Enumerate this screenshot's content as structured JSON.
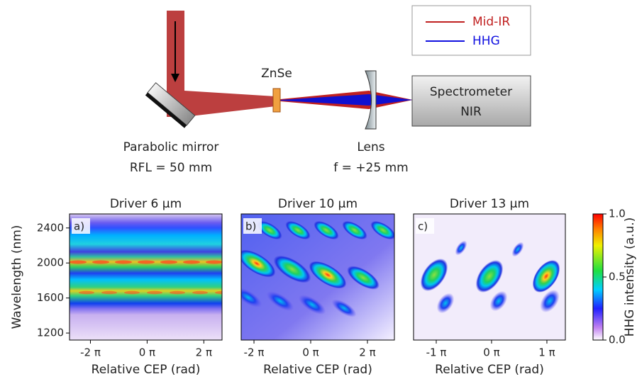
{
  "diagram": {
    "legend": [
      "Mid-IR",
      "HHG"
    ],
    "znse": "ZnSe",
    "mirror": [
      "Parabolic mirror",
      "RFL = 50 mm"
    ],
    "lens": [
      "Lens",
      "f = +25 mm"
    ],
    "spectrometer": [
      "Spectrometer",
      "NIR"
    ]
  },
  "chart_data": [
    {
      "type": "heatmap",
      "title": "Driver 6 µm",
      "panel": "a)",
      "xlabel": "Relative CEP (rad)",
      "ylabel": "Wavelength (nm)",
      "xlim": [
        -8.6,
        8.3
      ],
      "ylim": [
        1120,
        2560
      ],
      "xticks": [
        {
          "value": -6.283,
          "label": "-2 π"
        },
        {
          "value": 0,
          "label": "0 π"
        },
        {
          "value": 6.283,
          "label": "2 π"
        }
      ],
      "yticks": [
        1200,
        1600,
        2000,
        2400
      ]
    },
    {
      "type": "heatmap",
      "title": "Driver 10 µm",
      "panel": "b)",
      "xlabel": "Relative CEP (rad)",
      "xlim": [
        -7.7,
        9.27
      ],
      "ylim": [
        1120,
        2560
      ],
      "xticks": [
        {
          "value": -6.283,
          "label": "-2 π"
        },
        {
          "value": 0,
          "label": "0 π"
        },
        {
          "value": 6.283,
          "label": "2 π"
        }
      ]
    },
    {
      "type": "heatmap",
      "title": "Driver 13 µm",
      "panel": "c)",
      "xlabel": "Relative CEP (rad)",
      "xlim": [
        -4.43,
        4.19
      ],
      "ylim": [
        1120,
        2560
      ],
      "xticks": [
        {
          "value": -3.1416,
          "label": "-1 π"
        },
        {
          "value": 0,
          "label": "0 π"
        },
        {
          "value": 3.1416,
          "label": "1 π"
        }
      ],
      "colorbar": {
        "label": "HHG intensity (a.u.)",
        "ylim": [
          0,
          1
        ],
        "yticks": [
          {
            "value": 0,
            "label": "0.0"
          },
          {
            "value": 0.5,
            "label": "0.5"
          },
          {
            "value": 1,
            "label": "1.0"
          }
        ]
      }
    }
  ]
}
